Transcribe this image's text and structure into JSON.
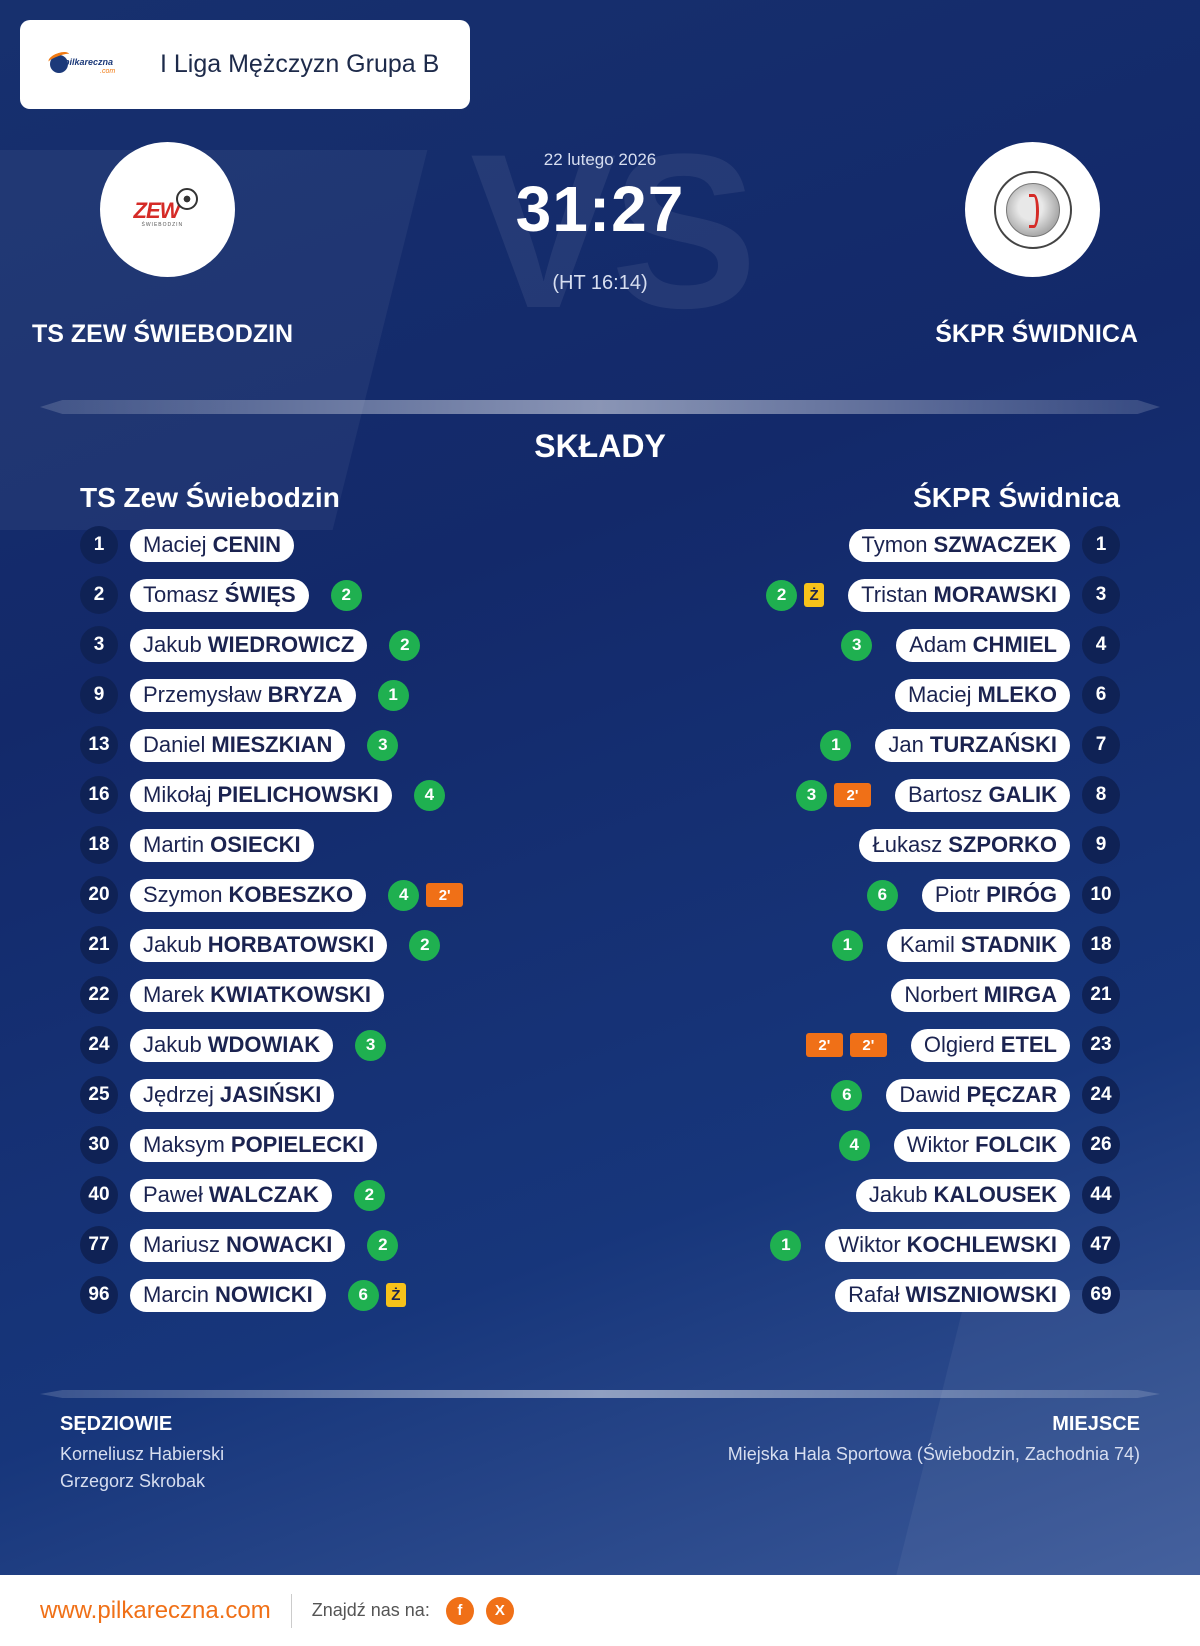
{
  "header": {
    "league": "I Liga Mężczyzn Grupa B",
    "brand_text": "pilkareczna",
    "brand_sub": ".com"
  },
  "match": {
    "date": "22 lutego 2026",
    "score": "31:27",
    "halftime": "(HT 16:14)",
    "home_name_upper": "TS ZEW ŚWIEBODZIN",
    "away_name_upper": "ŚKPR ŚWIDNICA",
    "home_logo_text": "ZEW",
    "home_logo_sub": "ŚWIEBODZIN"
  },
  "lineups": {
    "title": "SKŁADY",
    "home_title": "TS Zew Świebodzin",
    "away_title": "ŚKPR Świdnica",
    "home": [
      {
        "number": "1",
        "first": "Maciej",
        "last": "CENIN",
        "goals": null,
        "cards": []
      },
      {
        "number": "2",
        "first": "Tomasz",
        "last": "ŚWIĘS",
        "goals": "2",
        "cards": []
      },
      {
        "number": "3",
        "first": "Jakub",
        "last": "WIEDROWICZ",
        "goals": "2",
        "cards": []
      },
      {
        "number": "9",
        "first": "Przemysław",
        "last": "BRYZA",
        "goals": "1",
        "cards": []
      },
      {
        "number": "13",
        "first": "Daniel",
        "last": "MIESZKIAN",
        "goals": "3",
        "cards": []
      },
      {
        "number": "16",
        "first": "Mikołaj",
        "last": "PIELICHOWSKI",
        "goals": "4",
        "cards": []
      },
      {
        "number": "18",
        "first": "Martin",
        "last": "OSIECKI",
        "goals": null,
        "cards": []
      },
      {
        "number": "20",
        "first": "Szymon",
        "last": "KOBESZKO",
        "goals": "4",
        "cards": [
          {
            "type": "excl",
            "label": "2'"
          }
        ]
      },
      {
        "number": "21",
        "first": "Jakub",
        "last": "HORBATOWSKI",
        "goals": "2",
        "cards": []
      },
      {
        "number": "22",
        "first": "Marek",
        "last": "KWIATKOWSKI",
        "goals": null,
        "cards": []
      },
      {
        "number": "24",
        "first": "Jakub",
        "last": "WDOWIAK",
        "goals": "3",
        "cards": []
      },
      {
        "number": "25",
        "first": "Jędrzej",
        "last": "JASIŃSKI",
        "goals": null,
        "cards": []
      },
      {
        "number": "30",
        "first": "Maksym",
        "last": "POPIELECKI",
        "goals": null,
        "cards": []
      },
      {
        "number": "40",
        "first": "Paweł",
        "last": "WALCZAK",
        "goals": "2",
        "cards": []
      },
      {
        "number": "77",
        "first": "Mariusz",
        "last": "NOWACKI",
        "goals": "2",
        "cards": []
      },
      {
        "number": "96",
        "first": "Marcin",
        "last": "NOWICKI",
        "goals": "6",
        "cards": [
          {
            "type": "yellow",
            "label": "Ż"
          }
        ]
      }
    ],
    "away": [
      {
        "number": "1",
        "first": "Tymon",
        "last": "SZWACZEK",
        "goals": null,
        "cards": []
      },
      {
        "number": "3",
        "first": "Tristan",
        "last": "MORAWSKI",
        "goals": "2",
        "cards": [
          {
            "type": "yellow",
            "label": "Ż"
          }
        ]
      },
      {
        "number": "4",
        "first": "Adam",
        "last": "CHMIEL",
        "goals": "3",
        "cards": []
      },
      {
        "number": "6",
        "first": "Maciej",
        "last": "MLEKO",
        "goals": null,
        "cards": []
      },
      {
        "number": "7",
        "first": "Jan",
        "last": "TURZAŃSKI",
        "goals": "1",
        "cards": []
      },
      {
        "number": "8",
        "first": "Bartosz",
        "last": "GALIK",
        "goals": "3",
        "cards": [
          {
            "type": "excl",
            "label": "2'"
          }
        ]
      },
      {
        "number": "9",
        "first": "Łukasz",
        "last": "SZPORKO",
        "goals": null,
        "cards": []
      },
      {
        "number": "10",
        "first": "Piotr",
        "last": "PIRÓG",
        "goals": "6",
        "cards": []
      },
      {
        "number": "18",
        "first": "Kamil",
        "last": "STADNIK",
        "goals": "1",
        "cards": []
      },
      {
        "number": "21",
        "first": "Norbert",
        "last": "MIRGA",
        "goals": null,
        "cards": []
      },
      {
        "number": "23",
        "first": "Olgierd",
        "last": "ETEL",
        "goals": null,
        "cards": [
          {
            "type": "excl",
            "label": "2'"
          },
          {
            "type": "excl",
            "label": "2'"
          }
        ]
      },
      {
        "number": "24",
        "first": "Dawid",
        "last": "PĘCZAR",
        "goals": "6",
        "cards": []
      },
      {
        "number": "26",
        "first": "Wiktor",
        "last": "FOLCIK",
        "goals": "4",
        "cards": []
      },
      {
        "number": "44",
        "first": "Jakub",
        "last": "KALOUSEK",
        "goals": null,
        "cards": []
      },
      {
        "number": "47",
        "first": "Wiktor",
        "last": "KOCHLEWSKI",
        "goals": "1",
        "cards": []
      },
      {
        "number": "69",
        "first": "Rafał",
        "last": "WISZNIOWSKI",
        "goals": null,
        "cards": []
      }
    ]
  },
  "officials": {
    "label": "SĘDZIOWIE",
    "referee1": "Korneliusz Habierski",
    "referee2": "Grzegorz Skrobak"
  },
  "venue": {
    "label": "MIEJSCE",
    "name": "Miejska Hala Sportowa (Świebodzin, Zachodnia 74)"
  },
  "footer": {
    "site": "www.pilkareczna.com",
    "find_us": "Znajdź nas na:",
    "facebook": "f",
    "x": "X"
  },
  "colors": {
    "background": "#17306e",
    "accent": "#f07017",
    "goal": "#1fb050",
    "yellow_card": "#f7c21a",
    "number_badge": "#0f2255"
  },
  "icons": [
    "pilkareczna-logo-icon",
    "zew-club-crest-icon",
    "skpr-club-crest-icon",
    "facebook-icon",
    "x-icon"
  ]
}
